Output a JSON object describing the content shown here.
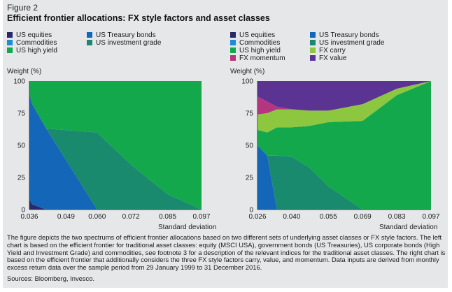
{
  "figure": {
    "label": "Figure 2",
    "title": "Efficient frontier allocations: FX style factors and asset classes",
    "caption": "The figure depicts the two spectrums of efficient frontier allocations based on two different sets of underlying asset classes or FX style factors. The left chart is based on the efficient frontier for traditional asset classes: equity (MSCI USA), government bonds (US Treasuries), US corporate bonds (High Yield and Investment Grade) and commodities, see footnote 3 for a description of the relevant indices for the traditional asset classes. The right chart is based on the efficient frontier that additionally considers the three FX style factors carry, value, and momentum. Data inputs are derived from monthly excess return data over the sample period from 29 January 1999 to 31 December 2016.",
    "sources": "Sources: Bloomberg, Invesco."
  },
  "colors": {
    "us_equities": "#2a2866",
    "commodities": "#1a8fd6",
    "us_high_yield": "#12a84b",
    "us_treasury": "#1467b8",
    "us_investment_grade": "#1a8a6f",
    "fx_carry": "#8dc63f",
    "fx_momentum": "#b5367f",
    "fx_value": "#5b3393",
    "background": "#e6e7e9"
  },
  "chart_data": [
    {
      "type": "area",
      "stacked": true,
      "ylabel": "Weight (%)",
      "xlabel": "Standard deviation",
      "ylim": [
        0,
        100
      ],
      "xlim": [
        0.036,
        0.097
      ],
      "yticks": [
        "0",
        "25",
        "50",
        "75",
        "100"
      ],
      "xticks": [
        "0.036",
        "0.049",
        "0.060",
        "0.072",
        "0.085",
        "0.097"
      ],
      "legend": [
        {
          "name": "US equities",
          "key": "us_equities"
        },
        {
          "name": "US Treasury bonds",
          "key": "us_treasury"
        },
        {
          "name": "Commodities",
          "key": "commodities"
        },
        {
          "name": "US investment grade",
          "key": "us_investment_grade"
        },
        {
          "name": "US high yield",
          "key": "us_high_yield"
        }
      ],
      "x": [
        0.036,
        0.037,
        0.042,
        0.06,
        0.072,
        0.085,
        0.097
      ],
      "series": [
        {
          "name": "US equities",
          "key": "us_equities",
          "values": [
            8,
            4,
            0,
            0,
            0,
            0,
            0
          ]
        },
        {
          "name": "US Treasury bonds",
          "key": "us_treasury",
          "values": [
            82,
            78,
            63,
            0,
            0,
            0,
            0
          ]
        },
        {
          "name": "Commodities",
          "key": "commodities",
          "values": [
            0,
            0,
            0,
            0,
            0,
            0,
            0
          ]
        },
        {
          "name": "US investment grade",
          "key": "us_investment_grade",
          "values": [
            0,
            0,
            0,
            60,
            35,
            12,
            0
          ]
        },
        {
          "name": "US high yield",
          "key": "us_high_yield",
          "values": [
            10,
            18,
            37,
            40,
            65,
            88,
            100
          ]
        }
      ]
    },
    {
      "type": "area",
      "stacked": true,
      "ylabel": "Weight (%)",
      "xlabel": "Standard deviation",
      "ylim": [
        0,
        100
      ],
      "xlim": [
        0.026,
        0.097
      ],
      "yticks": [
        "0",
        "25",
        "50",
        "75",
        "100"
      ],
      "xticks": [
        "0.026",
        "0.040",
        "0.055",
        "0.069",
        "0.083",
        "0.097"
      ],
      "legend": [
        {
          "name": "US equities",
          "key": "us_equities"
        },
        {
          "name": "US Treasury bonds",
          "key": "us_treasury"
        },
        {
          "name": "Commodities",
          "key": "commodities"
        },
        {
          "name": "US investment grade",
          "key": "us_investment_grade"
        },
        {
          "name": "US high yield",
          "key": "us_high_yield"
        },
        {
          "name": "FX carry",
          "key": "fx_carry"
        },
        {
          "name": "FX momentum",
          "key": "fx_momentum"
        },
        {
          "name": "FX value",
          "key": "fx_value"
        }
      ],
      "x": [
        0.026,
        0.03,
        0.034,
        0.04,
        0.047,
        0.055,
        0.069,
        0.083,
        0.097
      ],
      "series": [
        {
          "name": "US equities",
          "key": "us_equities",
          "values": [
            0,
            0,
            0,
            0,
            0,
            0,
            0,
            0,
            0
          ]
        },
        {
          "name": "US Treasury bonds",
          "key": "us_treasury",
          "values": [
            50,
            42,
            0,
            0,
            0,
            0,
            0,
            0,
            0
          ]
        },
        {
          "name": "Commodities",
          "key": "commodities",
          "values": [
            0,
            0,
            0,
            0,
            0,
            0,
            0,
            0,
            0
          ]
        },
        {
          "name": "US investment grade",
          "key": "us_investment_grade",
          "values": [
            0,
            0,
            42,
            41,
            33,
            18,
            0,
            0,
            0
          ]
        },
        {
          "name": "US high yield",
          "key": "us_high_yield",
          "values": [
            12,
            18,
            22,
            23,
            32,
            50,
            69,
            89,
            100
          ]
        },
        {
          "name": "FX carry",
          "key": "fx_carry",
          "values": [
            12,
            15,
            14,
            14,
            12,
            9,
            13,
            5,
            0
          ]
        },
        {
          "name": "FX momentum",
          "key": "fx_momentum",
          "values": [
            14,
            9,
            2,
            0,
            0,
            0,
            0,
            0,
            0
          ]
        },
        {
          "name": "FX value",
          "key": "fx_value",
          "values": [
            12,
            16,
            20,
            22,
            23,
            23,
            18,
            6,
            0
          ]
        }
      ]
    }
  ]
}
